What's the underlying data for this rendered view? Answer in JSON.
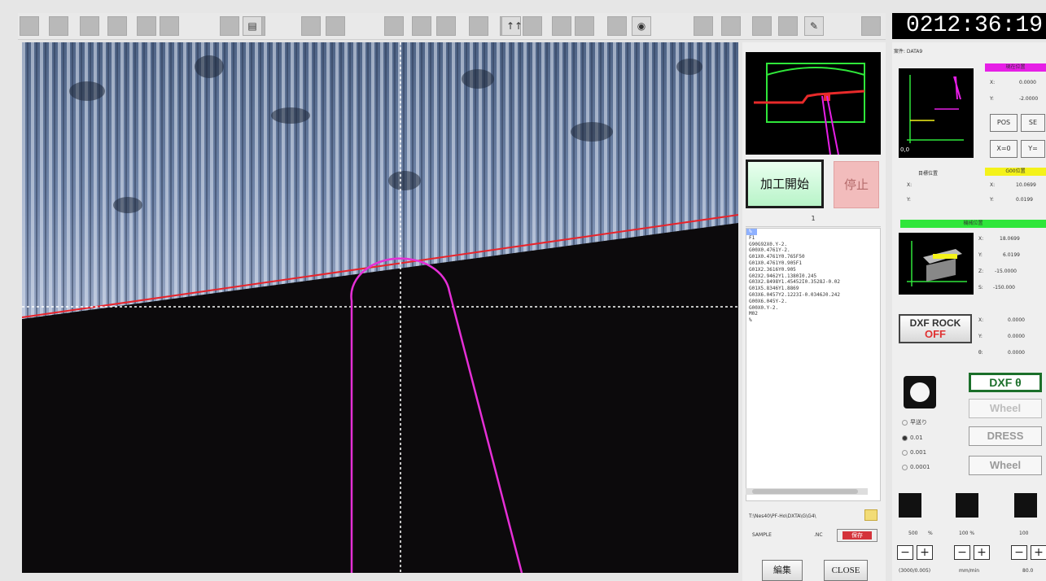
{
  "toolbar": {
    "buttons": [
      "btn",
      "btn",
      "btn",
      "btn",
      "btn",
      "btn",
      "btn",
      "btn",
      "folder",
      "btn",
      "btn",
      "btn",
      "btn",
      "btn",
      "btn",
      "btn",
      "tool-pair",
      "btn",
      "btn",
      "btn",
      "btn",
      "camera",
      "btn",
      "btn",
      "btn",
      "btn",
      "brush",
      "btn"
    ]
  },
  "clock": "0212:36:19",
  "panel": {
    "start_label": "加工開始",
    "stop_label": "停止",
    "code_line_number": "1",
    "code_lines": [
      "%",
      "F1",
      "G90G92X0.Y-2.",
      "G00X0.4761Y-2.",
      "G01X0.4761Y0.765F50",
      "G01X0.4761Y0.905F1",
      "G01X2.3616Y0.905",
      "G02X2.9462Y1.1380I0.245",
      "G03X2.8498Y1.45452I0.3528J-0.02",
      "G01X5.8346Y1.8869",
      "G03X6.0457Y2.1223I-0.0346J0.242",
      "G00X6.045Y-2.",
      "G00X0.Y-2.",
      "M02",
      "%"
    ],
    "file_path": "T:\\Nes40\\PF-Ho\\DXTA\\G\\G4\\",
    "file_name": "SAMPLE",
    "file_ext": ".NC",
    "save_label": "保存",
    "edit_label": "編集",
    "close_label": "CLOSE"
  },
  "right": {
    "file_label": "案件: DATA9",
    "current_pos_header": "現在位置",
    "pos_x": "0.0000",
    "pos_y": "-2.0000",
    "pos_btn": "POS",
    "set_btn": "SE",
    "x0_btn": "X=0",
    "y0_btn": "Y=",
    "target_header": "目標位置",
    "target_x_label": "X:",
    "target_y_label": "Y:",
    "g00_header": "G00位置",
    "g00_x": "10.0699",
    "g00_y": "0.0199",
    "machine_header": "機械位置",
    "m_x": "18.0699",
    "m_y": "6.0199",
    "m_z": "-15.0000",
    "m_s": "-150.000",
    "dxf_rock_line1": "DXF ROCK",
    "dxf_rock_line2": "OFF",
    "dxf_x": "0.0000",
    "dxf_y": "0.0000",
    "dxf_t": "0.0000",
    "step_labels": [
      "早送り",
      "0.01",
      "0.001",
      "0.0001"
    ],
    "dxf_theta_btn": "DXF  θ",
    "wheel_btn_1": "Wheel",
    "dress_btn": "DRESS",
    "wheel_btn_2": "Wheel",
    "feed_1": "500",
    "feed_1_unit": "%",
    "feed_2": "100 %",
    "feed_3": "100",
    "bottom_1": "(3000/0.005)",
    "bottom_2": "mm/min",
    "bottom_3": "80.0"
  },
  "colors": {
    "accent_green": "#2fe63a",
    "accent_magenta": "#e61fe6",
    "accent_yellow": "#f4f21a",
    "stop_pink": "#f2bcbc"
  }
}
